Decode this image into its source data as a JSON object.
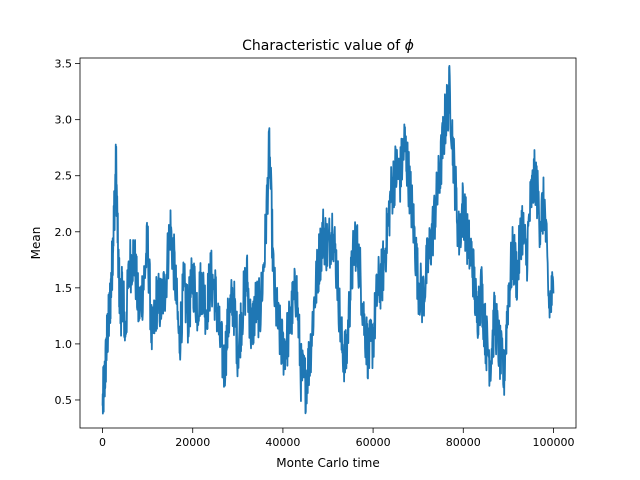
{
  "chart_data": {
    "type": "line",
    "title": "Characteristic value of",
    "title_symbol": "ϕ",
    "xlabel": "Monte Carlo time",
    "ylabel": "Mean",
    "xlim": [
      -5000,
      105000
    ],
    "ylim": [
      0.25,
      3.55
    ],
    "x_ticks": [
      0,
      20000,
      40000,
      60000,
      80000,
      100000
    ],
    "x_tick_labels": [
      "0",
      "20000",
      "40000",
      "60000",
      "80000",
      "100000"
    ],
    "y_ticks": [
      0.5,
      1.0,
      1.5,
      2.0,
      2.5,
      3.0,
      3.5
    ],
    "y_tick_labels": [
      "0.5",
      "1.0",
      "1.5",
      "2.0",
      "2.5",
      "3.0",
      "3.5"
    ],
    "grid": false,
    "line_color": "#1f77b4",
    "series": [
      {
        "x": [
          0,
          500,
          1000,
          1500,
          2000,
          2500,
          3000,
          3500,
          4000,
          4500,
          5000,
          6000,
          7000,
          8000,
          9000,
          10000,
          11000,
          12000,
          13000,
          14000,
          15000,
          16000,
          17000,
          18000,
          19000,
          20000,
          21000,
          22000,
          23000,
          24000,
          25000,
          26000,
          27000,
          28000,
          29000,
          30000,
          31000,
          32000,
          33000,
          34000,
          35000,
          36000,
          37000,
          38000,
          39000,
          40000,
          41000,
          42000,
          43000,
          44000,
          45000,
          46000,
          47000,
          48000,
          49000,
          50000,
          51000,
          52000,
          53000,
          54000,
          55000,
          56000,
          57000,
          58000,
          59000,
          60000,
          61000,
          62000,
          63000,
          64000,
          65000,
          66000,
          67000,
          68000,
          69000,
          70000,
          71000,
          72000,
          73000,
          74000,
          75000,
          76000,
          77000,
          78000,
          79000,
          80000,
          81000,
          82000,
          83000,
          84000,
          85000,
          86000,
          87000,
          88000,
          89000,
          90000,
          91000,
          92000,
          93000,
          94000,
          95000,
          96000,
          97000,
          98000,
          99000,
          100000
        ],
        "y": [
          0.45,
          0.7,
          1.05,
          1.25,
          1.6,
          2.1,
          2.6,
          1.7,
          1.3,
          1.5,
          1.1,
          1.7,
          1.8,
          1.3,
          1.5,
          1.9,
          1.0,
          1.4,
          1.35,
          1.55,
          2.05,
          1.65,
          1.0,
          1.5,
          1.25,
          1.6,
          1.35,
          1.55,
          1.3,
          1.6,
          1.45,
          1.05,
          0.8,
          1.25,
          1.4,
          0.95,
          1.3,
          1.6,
          1.1,
          1.35,
          1.3,
          1.85,
          2.75,
          1.5,
          1.15,
          0.95,
          1.05,
          1.3,
          1.5,
          0.75,
          0.65,
          0.9,
          1.4,
          1.75,
          2.0,
          1.85,
          2.05,
          1.65,
          1.0,
          0.85,
          1.5,
          1.95,
          1.7,
          1.2,
          0.9,
          1.05,
          1.5,
          1.6,
          1.95,
          2.35,
          2.55,
          2.5,
          2.8,
          2.45,
          2.05,
          1.55,
          1.4,
          1.7,
          1.95,
          2.25,
          2.6,
          3.0,
          3.25,
          2.55,
          1.95,
          2.25,
          1.9,
          1.75,
          1.25,
          1.5,
          1.05,
          0.85,
          1.25,
          0.95,
          0.7,
          1.45,
          1.8,
          1.6,
          2.1,
          1.75,
          2.3,
          2.5,
          2.1,
          2.25,
          1.35,
          1.45
        ]
      }
    ]
  }
}
